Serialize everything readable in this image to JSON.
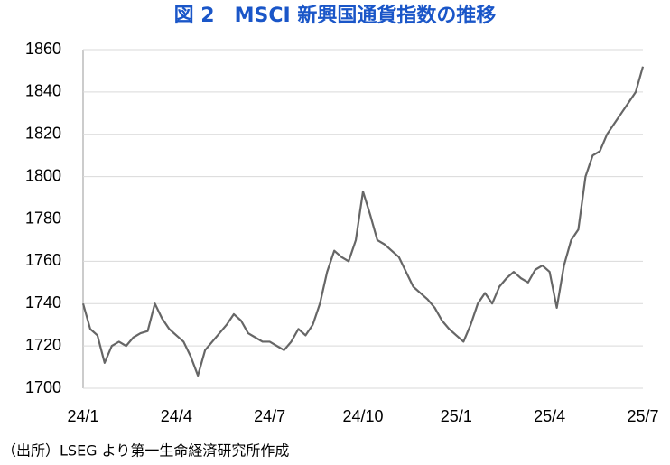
{
  "chart_data": {
    "type": "line",
    "title": "図 2　MSCI 新興国通貨指数の推移",
    "source": "（出所）LSEG より第一生命経済研究所作成",
    "categories": [
      "24/1",
      null,
      null,
      null,
      null,
      null,
      null,
      null,
      null,
      null,
      null,
      null,
      null,
      "24/4",
      null,
      null,
      null,
      null,
      null,
      null,
      null,
      null,
      null,
      null,
      null,
      null,
      "24/7",
      null,
      null,
      null,
      null,
      null,
      null,
      null,
      null,
      null,
      null,
      null,
      null,
      "24/10",
      null,
      null,
      null,
      null,
      null,
      null,
      null,
      null,
      null,
      null,
      null,
      null,
      "25/1",
      null,
      null,
      null,
      null,
      null,
      null,
      null,
      null,
      null,
      null,
      null,
      null,
      "25/4",
      null,
      null,
      null,
      null,
      null,
      null,
      null,
      null,
      null,
      null,
      null,
      null,
      "25/7"
    ],
    "values": [
      1740,
      1728,
      1725,
      1712,
      1720,
      1722,
      1720,
      1724,
      1726,
      1727,
      1740,
      1733,
      1728,
      1725,
      1722,
      1715,
      1706,
      1718,
      1722,
      1726,
      1730,
      1735,
      1732,
      1726,
      1724,
      1722,
      1722,
      1720,
      1718,
      1722,
      1728,
      1725,
      1730,
      1740,
      1755,
      1765,
      1762,
      1760,
      1770,
      1793,
      1782,
      1770,
      1768,
      1765,
      1762,
      1755,
      1748,
      1745,
      1742,
      1738,
      1732,
      1728,
      1725,
      1722,
      1730,
      1740,
      1745,
      1740,
      1748,
      1752,
      1755,
      1752,
      1750,
      1756,
      1758,
      1755,
      1738,
      1758,
      1770,
      1775,
      1800,
      1810,
      1812,
      1820,
      1825,
      1830,
      1835,
      1840,
      1852
    ],
    "color": "#666666",
    "ylim": [
      1700,
      1860
    ],
    "yticks": [
      1700,
      1720,
      1740,
      1760,
      1780,
      1800,
      1820,
      1840,
      1860
    ],
    "grid": true
  }
}
